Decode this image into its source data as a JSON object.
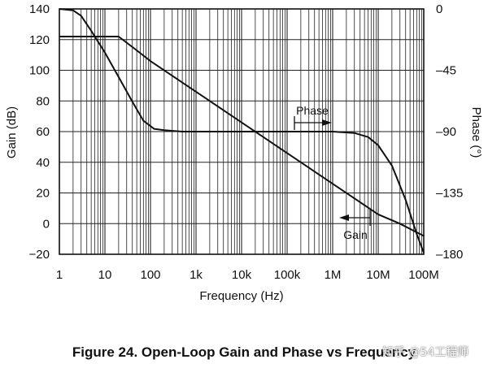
{
  "chart_data": {
    "type": "line",
    "xlabel": "Frequency (Hz)",
    "ylabel": "Gain (dB)",
    "y2label": "Phase (°)",
    "x_scale": "log",
    "xlim": [
      1,
      100000000
    ],
    "ylim": [
      -20,
      140
    ],
    "y2lim": [
      -180,
      0
    ],
    "x_ticks": [
      {
        "value": 1,
        "label": "1"
      },
      {
        "value": 10,
        "label": "10"
      },
      {
        "value": 100,
        "label": "100"
      },
      {
        "value": 1000,
        "label": "1k"
      },
      {
        "value": 10000,
        "label": "10k"
      },
      {
        "value": 100000,
        "label": "100k"
      },
      {
        "value": 1000000,
        "label": "1M"
      },
      {
        "value": 10000000,
        "label": "10M"
      },
      {
        "value": 100000000,
        "label": "100M"
      }
    ],
    "y_ticks": [
      {
        "value": 140,
        "label": "140"
      },
      {
        "value": 120,
        "label": "120"
      },
      {
        "value": 100,
        "label": "100"
      },
      {
        "value": 80,
        "label": "80"
      },
      {
        "value": 60,
        "label": "60"
      },
      {
        "value": 40,
        "label": "40"
      },
      {
        "value": 20,
        "label": "20"
      },
      {
        "value": 0,
        "label": "0"
      },
      {
        "value": -20,
        "label": "−20"
      }
    ],
    "y2_ticks": [
      {
        "value": 0,
        "label": "0"
      },
      {
        "value": -45,
        "label": "–45"
      },
      {
        "value": -90,
        "label": "–90"
      },
      {
        "value": -135,
        "label": "–135"
      },
      {
        "value": -180,
        "label": "–180"
      }
    ],
    "grid": true,
    "series": [
      {
        "name": "Gain",
        "axis": "left",
        "points": [
          [
            1,
            122
          ],
          [
            10,
            122
          ],
          [
            20,
            122
          ],
          [
            50,
            113
          ],
          [
            100,
            106
          ],
          [
            1000,
            86
          ],
          [
            10000,
            66
          ],
          [
            100000,
            46
          ],
          [
            1000000,
            26
          ],
          [
            10000000,
            6
          ],
          [
            30000000,
            0
          ],
          [
            100000000,
            -8
          ]
        ]
      },
      {
        "name": "Phase",
        "axis": "right",
        "points": [
          [
            1,
            0
          ],
          [
            2,
            -1
          ],
          [
            3,
            -5
          ],
          [
            5,
            -16
          ],
          [
            10,
            -32
          ],
          [
            20,
            -50
          ],
          [
            40,
            -68
          ],
          [
            70,
            -82
          ],
          [
            120,
            -88
          ],
          [
            200,
            -89
          ],
          [
            500,
            -90
          ],
          [
            1000,
            -90
          ],
          [
            100000,
            -90
          ],
          [
            1000000,
            -90
          ],
          [
            3000000,
            -91
          ],
          [
            6000000,
            -94
          ],
          [
            10000000,
            -100
          ],
          [
            20000000,
            -115
          ],
          [
            40000000,
            -140
          ],
          [
            70000000,
            -165
          ],
          [
            100000000,
            -179
          ]
        ]
      }
    ],
    "annotations": [
      {
        "text": "Phase",
        "arrow": "right"
      },
      {
        "text": "Gain",
        "arrow": "left"
      }
    ]
  },
  "caption": "Figure 24. Open-Loop Gain and Phase vs Frequency",
  "watermark": "知乎 @54工程师",
  "colors": {
    "line": "#111111",
    "grid": "#222222",
    "background": "#ffffff"
  }
}
